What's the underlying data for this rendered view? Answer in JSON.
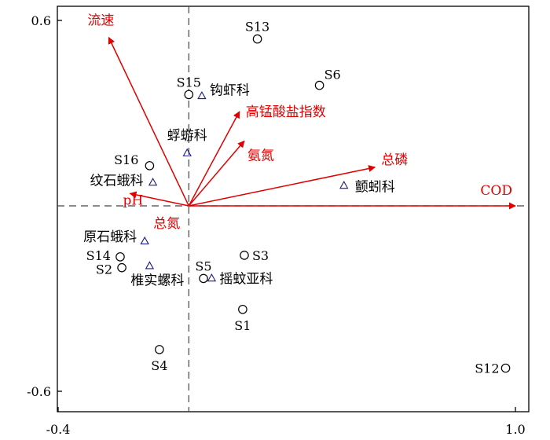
{
  "chart_data": {
    "type": "scatter",
    "title": "",
    "xlabel": "",
    "ylabel": "",
    "xlim": [
      -0.4,
      1.0
    ],
    "ylim": [
      -0.68,
      0.65
    ],
    "x_ticks": [
      "-0.4",
      "1.0"
    ],
    "y_ticks": [
      "0.6",
      "-0.6"
    ],
    "x_tick_values": [
      -0.4,
      1.0
    ],
    "y_tick_values": [
      0.6,
      -0.6
    ],
    "grid": false,
    "reference_lines": {
      "x": 0,
      "y": 0,
      "style": "dashed"
    },
    "colors": {
      "arrow": "#e00000",
      "taxon": "#1a1a8c",
      "site": "#000000",
      "axis": "#000000"
    },
    "environment_arrows": [
      {
        "name": "流速",
        "x": -0.245,
        "y": 0.545
      },
      {
        "name": "高锰酸盐指数",
        "x": 0.155,
        "y": 0.305
      },
      {
        "name": "氨氮",
        "x": 0.17,
        "y": 0.21
      },
      {
        "name": "总磷",
        "x": 0.57,
        "y": 0.125
      },
      {
        "name": "COD",
        "x": 1.0,
        "y": 0.0
      },
      {
        "name": "pH",
        "x": -0.18,
        "y": 0.04
      },
      {
        "name": "总氮",
        "x": 0.0,
        "y": 0.0
      }
    ],
    "sites": [
      {
        "name": "S13",
        "x": 0.21,
        "y": 0.54
      },
      {
        "name": "S6",
        "x": 0.4,
        "y": 0.39
      },
      {
        "name": "S15",
        "x": 0.0,
        "y": 0.36
      },
      {
        "name": "S16",
        "x": -0.12,
        "y": 0.13
      },
      {
        "name": "S14",
        "x": -0.21,
        "y": -0.165
      },
      {
        "name": "S2",
        "x": -0.205,
        "y": -0.2
      },
      {
        "name": "S3",
        "x": 0.17,
        "y": -0.16
      },
      {
        "name": "S5",
        "x": 0.045,
        "y": -0.235
      },
      {
        "name": "S1",
        "x": 0.165,
        "y": -0.335
      },
      {
        "name": "S4",
        "x": -0.09,
        "y": -0.465
      },
      {
        "name": "S12",
        "x": 0.97,
        "y": -0.525
      }
    ],
    "taxa": [
      {
        "name": "钩虾科",
        "x": 0.04,
        "y": 0.355
      },
      {
        "name": "蜉蝣科",
        "x": -0.005,
        "y": 0.17
      },
      {
        "name": "纹石蛾科",
        "x": -0.11,
        "y": 0.075
      },
      {
        "name": "颤蚓科",
        "x": 0.475,
        "y": 0.065
      },
      {
        "name": "原石蛾科",
        "x": -0.135,
        "y": -0.115
      },
      {
        "name": "椎实螺科",
        "x": -0.12,
        "y": -0.195
      },
      {
        "name": "摇蚊亚科",
        "x": 0.07,
        "y": -0.235
      }
    ]
  }
}
